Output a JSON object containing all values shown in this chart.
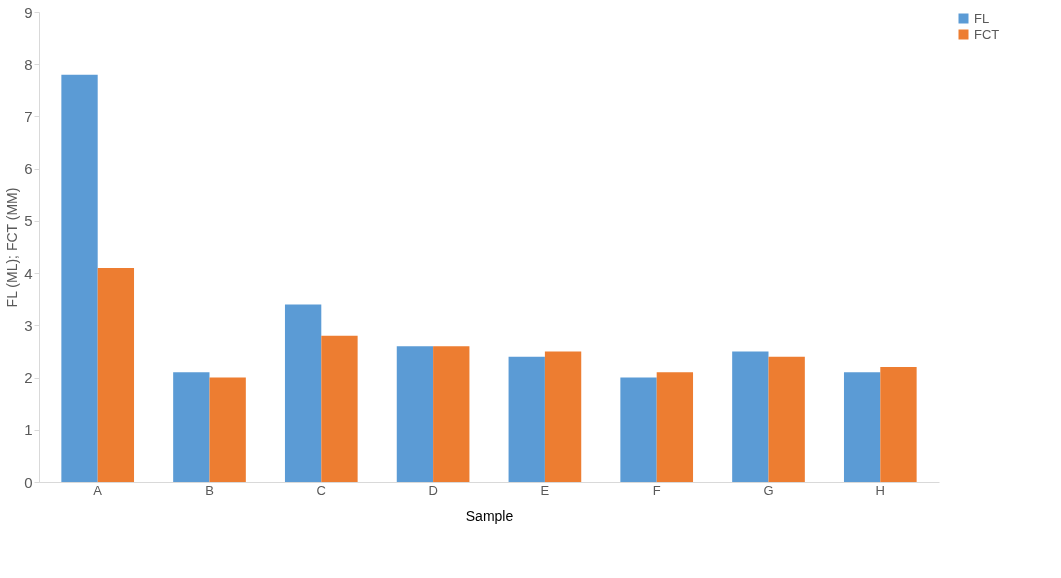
{
  "chart_data": {
    "type": "bar",
    "xlabel": "Sample",
    "ylabel": "FL (ML); FCT (MM)",
    "categories": [
      "A",
      "B",
      "C",
      "D",
      "E",
      "F",
      "G",
      "H"
    ],
    "series": [
      {
        "name": "FL",
        "color": "#5b9bd5",
        "values": [
          7.8,
          2.1,
          3.4,
          2.6,
          2.4,
          2.0,
          2.5,
          2.1
        ]
      },
      {
        "name": "FCT",
        "color": "#ed7d31",
        "values": [
          4.1,
          2.0,
          2.8,
          2.6,
          2.5,
          2.1,
          2.4,
          2.2
        ]
      }
    ],
    "ylim": [
      0,
      9
    ],
    "yticks": [
      0,
      1,
      2,
      3,
      4,
      5,
      6,
      7,
      8,
      9
    ],
    "grid": false,
    "legend": "right"
  }
}
